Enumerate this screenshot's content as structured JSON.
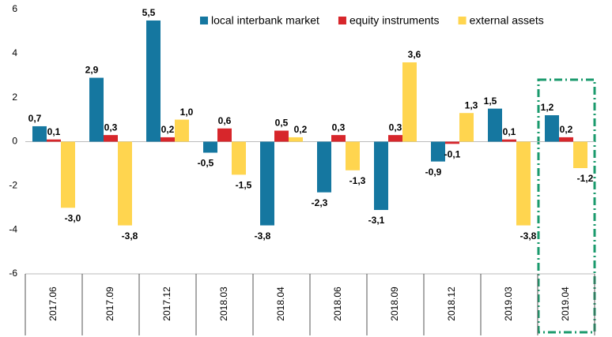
{
  "chart_data": {
    "type": "bar",
    "categories": [
      "2017.06",
      "2017.09",
      "2017.12",
      "2018.03",
      "2018.04",
      "2018.06",
      "2018.09",
      "2018.12",
      "2019.03",
      "2019.04"
    ],
    "series": [
      {
        "name": "local interbank market",
        "color": "#1577a0",
        "values": [
          0.7,
          2.9,
          5.5,
          -0.5,
          -3.8,
          -2.3,
          -3.1,
          -0.9,
          1.5,
          1.2
        ],
        "value_labels": [
          "0,7",
          "2,9",
          "5,5",
          "-0,5",
          "-3,8",
          "-2,3",
          "-3,1",
          "-0,9",
          "1,5",
          "1,2"
        ]
      },
      {
        "name": "equity instruments",
        "color": "#d7262b",
        "values": [
          0.1,
          0.3,
          0.2,
          0.6,
          0.5,
          0.3,
          0.3,
          -0.1,
          0.1,
          0.2
        ],
        "value_labels": [
          "0,1",
          "0,3",
          "0,2",
          "0,6",
          "0,5",
          "0,3",
          "0,3",
          "-0,1",
          "0,1",
          "0,2"
        ]
      },
      {
        "name": "external assets",
        "color": "#ffd54f",
        "values": [
          -3.0,
          -3.8,
          1.0,
          -1.5,
          0.2,
          -1.3,
          3.6,
          1.3,
          -3.8,
          -1.2
        ],
        "value_labels": [
          "-3,0",
          "-3,8",
          "1,0",
          "-1,5",
          "0,2",
          "-1,3",
          "3,6",
          "1,3",
          "-3,8",
          "-1,2"
        ]
      }
    ],
    "ylim": [
      -6,
      6
    ],
    "yticks": [
      -6,
      -4,
      -2,
      0,
      2,
      4,
      6
    ],
    "grid": false,
    "legend": "top-right"
  }
}
